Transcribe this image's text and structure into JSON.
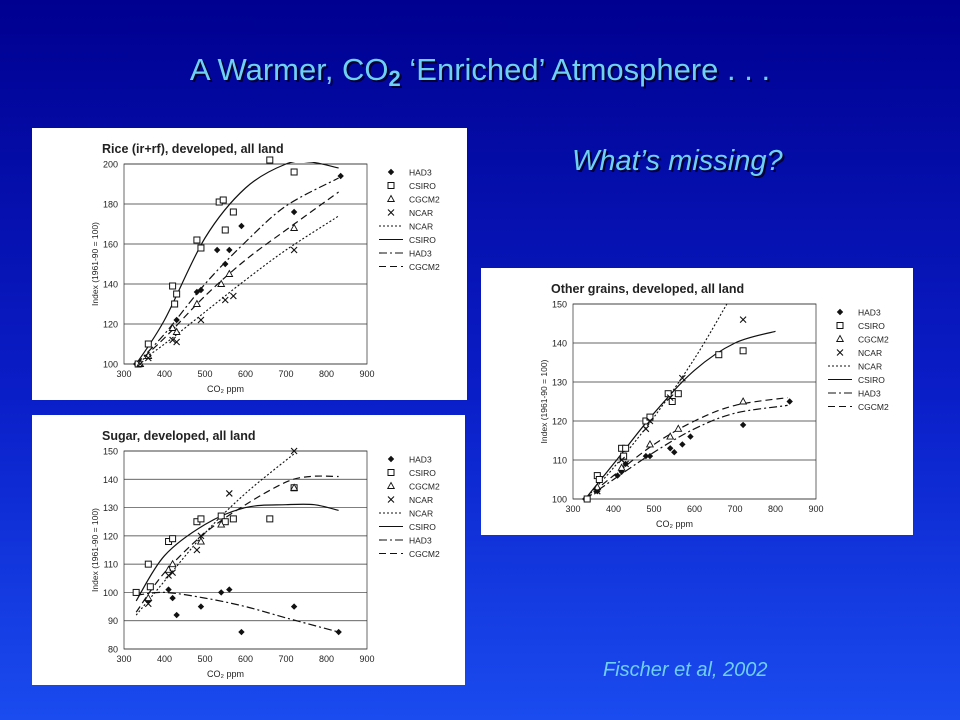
{
  "slide": {
    "title_main": "A Warmer,  CO",
    "title_sub": "2",
    "title_rest": " ‘Enriched’ Atmosphere  . . .",
    "question": "What’s missing?",
    "credit": "Fischer et al, 2002"
  },
  "legend": [
    {
      "label": "HAD3",
      "kind": "marker",
      "marker": "diamond"
    },
    {
      "label": "CSIRO",
      "kind": "marker",
      "marker": "square"
    },
    {
      "label": "CGCM2",
      "kind": "marker",
      "marker": "triangle"
    },
    {
      "label": "NCAR",
      "kind": "marker",
      "marker": "x"
    },
    {
      "label": "NCAR",
      "kind": "line",
      "dash": "dotted"
    },
    {
      "label": "CSIRO",
      "kind": "line",
      "dash": "solid"
    },
    {
      "label": "HAD3",
      "kind": "line",
      "dash": "dashdot"
    },
    {
      "label": "CGCM2",
      "kind": "line",
      "dash": "dashed"
    }
  ],
  "chart_data": [
    {
      "id": "rice",
      "type": "scatter",
      "title": "Rice (ir+rf), developed, all land",
      "xlabel": "CO2 ppm",
      "ylabel": "Index (1961-90 = 100)",
      "xlim": [
        300,
        900
      ],
      "ylim": [
        100,
        200
      ],
      "xticks": [
        300,
        400,
        500,
        600,
        700,
        800,
        900
      ],
      "yticks": [
        100,
        120,
        140,
        160,
        180,
        200
      ],
      "grid": "horizontal",
      "legend_position": "right",
      "series": [
        {
          "name": "HAD3",
          "marker": "diamond",
          "points": [
            [
              330,
              100
            ],
            [
              360,
              104
            ],
            [
              420,
              118
            ],
            [
              430,
              122
            ],
            [
              480,
              136
            ],
            [
              490,
              137
            ],
            [
              530,
              157
            ],
            [
              550,
              150
            ],
            [
              560,
              157
            ],
            [
              590,
              169
            ],
            [
              720,
              176
            ],
            [
              835,
              194
            ]
          ]
        },
        {
          "name": "CSIRO",
          "marker": "square",
          "points": [
            [
              335,
              100
            ],
            [
              360,
              110
            ],
            [
              420,
              139
            ],
            [
              425,
              130
            ],
            [
              430,
              135
            ],
            [
              480,
              162
            ],
            [
              490,
              158
            ],
            [
              535,
              181
            ],
            [
              545,
              182
            ],
            [
              550,
              167
            ],
            [
              570,
              176
            ],
            [
              660,
              202
            ],
            [
              720,
              196
            ]
          ]
        },
        {
          "name": "CGCM2",
          "marker": "triangle",
          "points": [
            [
              340,
              100
            ],
            [
              360,
              104
            ],
            [
              420,
              118
            ],
            [
              430,
              116
            ],
            [
              480,
              130
            ],
            [
              540,
              140
            ],
            [
              560,
              145
            ],
            [
              720,
              168
            ]
          ]
        },
        {
          "name": "NCAR",
          "marker": "x",
          "points": [
            [
              340,
              100
            ],
            [
              360,
              103
            ],
            [
              420,
              112
            ],
            [
              430,
              111
            ],
            [
              490,
              122
            ],
            [
              550,
              132
            ],
            [
              570,
              134
            ],
            [
              720,
              157
            ]
          ]
        }
      ],
      "curves": [
        {
          "name": "NCAR",
          "dash": "dotted",
          "points": [
            [
              330,
              100
            ],
            [
              400,
              110
            ],
            [
              500,
              126
            ],
            [
              600,
              142
            ],
            [
              700,
              157
            ],
            [
              830,
              174
            ]
          ]
        },
        {
          "name": "CSIRO",
          "dash": "solid",
          "points": [
            [
              330,
              100
            ],
            [
              400,
              122
            ],
            [
              500,
              163
            ],
            [
              600,
              188
            ],
            [
              700,
              200
            ],
            [
              760,
              201
            ],
            [
              830,
              198
            ]
          ]
        },
        {
          "name": "HAD3",
          "dash": "dashdot",
          "points": [
            [
              330,
              100
            ],
            [
              400,
              115
            ],
            [
              500,
              140
            ],
            [
              600,
              161
            ],
            [
              700,
              179
            ],
            [
              830,
              193
            ]
          ]
        },
        {
          "name": "CGCM2",
          "dash": "dashed",
          "points": [
            [
              330,
              100
            ],
            [
              400,
              113
            ],
            [
              500,
              134
            ],
            [
              600,
              152
            ],
            [
              700,
              167
            ],
            [
              830,
              186
            ]
          ]
        }
      ]
    },
    {
      "id": "sugar",
      "type": "scatter",
      "title": "Sugar, developed, all land",
      "xlabel": "CO2 ppm",
      "ylabel": "Index (1961-90 = 100)",
      "xlim": [
        300,
        900
      ],
      "ylim": [
        80,
        150
      ],
      "xticks": [
        300,
        400,
        500,
        600,
        700,
        800,
        900
      ],
      "yticks": [
        80,
        90,
        100,
        110,
        120,
        130,
        140,
        150
      ],
      "grid": "horizontal",
      "legend_position": "right",
      "series": [
        {
          "name": "HAD3",
          "marker": "diamond",
          "points": [
            [
              330,
              100
            ],
            [
              360,
              97
            ],
            [
              410,
              101
            ],
            [
              420,
              98
            ],
            [
              430,
              92
            ],
            [
              490,
              95
            ],
            [
              540,
              100
            ],
            [
              560,
              101
            ],
            [
              590,
              86
            ],
            [
              720,
              95
            ],
            [
              830,
              86
            ]
          ]
        },
        {
          "name": "CSIRO",
          "marker": "square",
          "points": [
            [
              330,
              100
            ],
            [
              360,
              110
            ],
            [
              365,
              102
            ],
            [
              410,
              118
            ],
            [
              420,
              119
            ],
            [
              480,
              125
            ],
            [
              490,
              126
            ],
            [
              540,
              127
            ],
            [
              550,
              125
            ],
            [
              570,
              126
            ],
            [
              660,
              126
            ],
            [
              720,
              137
            ]
          ]
        },
        {
          "name": "CGCM2",
          "marker": "triangle",
          "points": [
            [
              360,
              98
            ],
            [
              410,
              108
            ],
            [
              420,
              110
            ],
            [
              490,
              118
            ],
            [
              540,
              124
            ],
            [
              720,
              137
            ]
          ]
        },
        {
          "name": "NCAR",
          "marker": "x",
          "points": [
            [
              360,
              96
            ],
            [
              410,
              106
            ],
            [
              420,
              107
            ],
            [
              480,
              115
            ],
            [
              490,
              120
            ],
            [
              560,
              135
            ],
            [
              720,
              150
            ]
          ]
        }
      ],
      "curves": [
        {
          "name": "NCAR",
          "dash": "dotted",
          "points": [
            [
              330,
              92
            ],
            [
              400,
              104
            ],
            [
              500,
              121
            ],
            [
              600,
              135
            ],
            [
              720,
              149
            ]
          ]
        },
        {
          "name": "CSIRO",
          "dash": "solid",
          "points": [
            [
              330,
              97
            ],
            [
              400,
              113
            ],
            [
              500,
              124
            ],
            [
              600,
              130
            ],
            [
              700,
              131
            ],
            [
              770,
              131
            ],
            [
              830,
              129
            ]
          ]
        },
        {
          "name": "HAD3",
          "dash": "dashdot",
          "points": [
            [
              330,
              99
            ],
            [
              400,
              100
            ],
            [
              500,
              98
            ],
            [
              600,
              95
            ],
            [
              700,
              91
            ],
            [
              830,
              86
            ]
          ]
        },
        {
          "name": "CGCM2",
          "dash": "dashed",
          "points": [
            [
              330,
              93
            ],
            [
              400,
              107
            ],
            [
              500,
              121
            ],
            [
              600,
              131
            ],
            [
              700,
              139
            ],
            [
              760,
              141
            ],
            [
              830,
              141
            ]
          ]
        }
      ]
    },
    {
      "id": "grains",
      "type": "scatter",
      "title": "Other grains, developed, all land",
      "xlabel": "CO2 ppm",
      "ylabel": "Index (1961-90 = 100)",
      "xlim": [
        300,
        900
      ],
      "ylim": [
        100,
        150
      ],
      "xticks": [
        300,
        400,
        500,
        600,
        700,
        800,
        900
      ],
      "yticks": [
        100,
        110,
        120,
        130,
        140,
        150
      ],
      "grid": "horizontal",
      "legend_position": "right",
      "series": [
        {
          "name": "HAD3",
          "marker": "diamond",
          "points": [
            [
              330,
              100
            ],
            [
              360,
              102
            ],
            [
              410,
              106
            ],
            [
              420,
              107
            ],
            [
              430,
              109
            ],
            [
              480,
              111
            ],
            [
              490,
              111
            ],
            [
              540,
              113
            ],
            [
              550,
              112
            ],
            [
              570,
              114
            ],
            [
              590,
              116
            ],
            [
              720,
              119
            ],
            [
              835,
              125
            ]
          ]
        },
        {
          "name": "CSIRO",
          "marker": "square",
          "points": [
            [
              335,
              100
            ],
            [
              360,
              106
            ],
            [
              365,
              105
            ],
            [
              420,
              113
            ],
            [
              425,
              111
            ],
            [
              430,
              113
            ],
            [
              480,
              120
            ],
            [
              490,
              121
            ],
            [
              535,
              127
            ],
            [
              545,
              125
            ],
            [
              560,
              127
            ],
            [
              660,
              137
            ],
            [
              720,
              138
            ]
          ]
        },
        {
          "name": "CGCM2",
          "marker": "triangle",
          "points": [
            [
              360,
              103
            ],
            [
              420,
              108
            ],
            [
              490,
              114
            ],
            [
              540,
              116
            ],
            [
              560,
              118
            ],
            [
              720,
              125
            ]
          ]
        },
        {
          "name": "NCAR",
          "marker": "x",
          "points": [
            [
              360,
              102
            ],
            [
              420,
              110
            ],
            [
              430,
              109
            ],
            [
              480,
              118
            ],
            [
              490,
              120
            ],
            [
              540,
              126
            ],
            [
              570,
              131
            ],
            [
              720,
              146
            ]
          ]
        }
      ],
      "curves": [
        {
          "name": "NCAR",
          "dash": "dotted",
          "points": [
            [
              330,
              100
            ],
            [
              400,
              108
            ],
            [
              500,
              121
            ],
            [
              600,
              136
            ],
            [
              680,
              150
            ]
          ]
        },
        {
          "name": "CSIRO",
          "dash": "solid",
          "points": [
            [
              330,
              100
            ],
            [
              400,
              109
            ],
            [
              500,
              122
            ],
            [
              600,
              133
            ],
            [
              700,
              140
            ],
            [
              800,
              143
            ]
          ]
        },
        {
          "name": "HAD3",
          "dash": "dashdot",
          "points": [
            [
              330,
              100
            ],
            [
              400,
              105
            ],
            [
              500,
              112
            ],
            [
              600,
              118
            ],
            [
              700,
              122
            ],
            [
              830,
              124
            ]
          ]
        },
        {
          "name": "CGCM2",
          "dash": "dashed",
          "points": [
            [
              330,
              100
            ],
            [
              400,
              106
            ],
            [
              500,
              114
            ],
            [
              600,
              120
            ],
            [
              700,
              124
            ],
            [
              830,
              126
            ]
          ]
        }
      ]
    }
  ]
}
